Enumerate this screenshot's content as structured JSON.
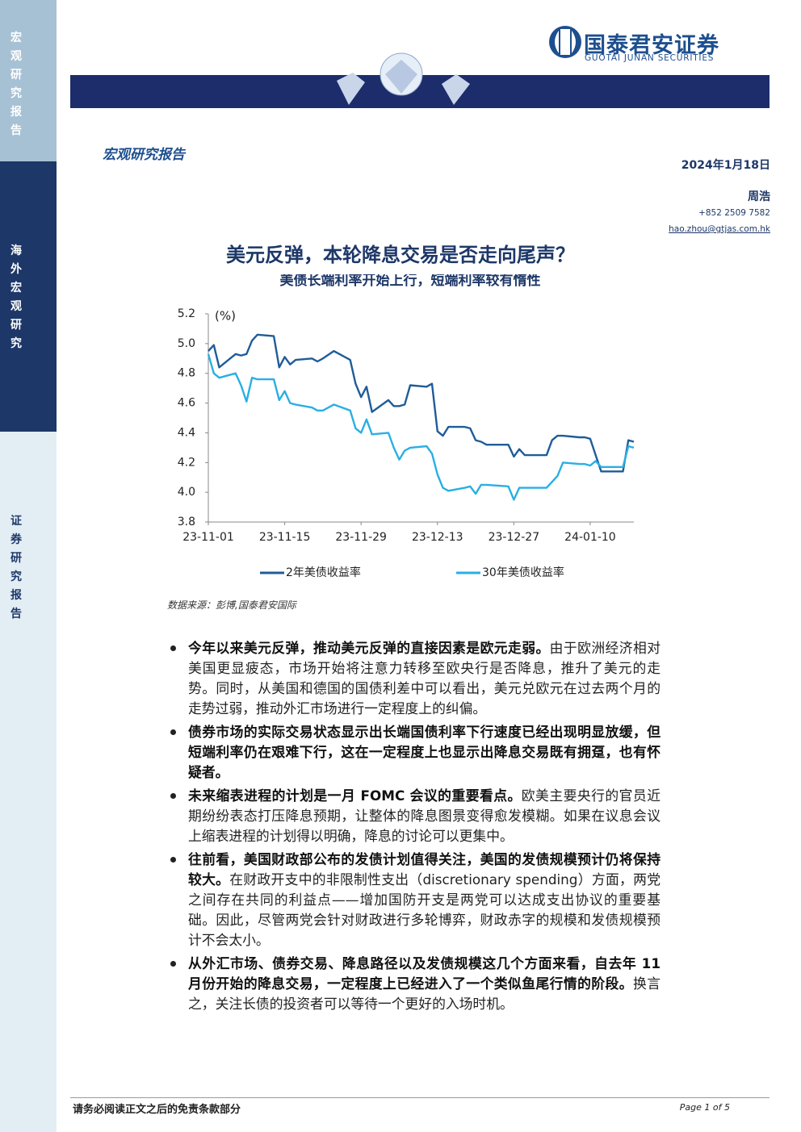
{
  "sidebar": {
    "top": "宏观研究报告",
    "middle": "海外宏观研究",
    "bottom": "证券研究报告"
  },
  "header": {
    "logo_cn": "国泰君安证券",
    "logo_en": "GUOTAI JUNAN SECURITIES"
  },
  "report_type": "宏观研究报告",
  "date": "2024年1月18日",
  "author": {
    "name": "周浩",
    "phone": "+852 2509 7582",
    "email": "hao.zhou@gtjas.com.hk"
  },
  "title": "美元反弹，本轮降息交易是否走向尾声？",
  "chart_data": {
    "type": "line",
    "title": "美债长端利率开始上行，短端利率较有惰性",
    "unit_label": "(%)",
    "x": [
      "23-11-01",
      "23-11-02",
      "23-11-03",
      "23-11-06",
      "23-11-07",
      "23-11-08",
      "23-11-09",
      "23-11-10",
      "23-11-13",
      "23-11-14",
      "23-11-15",
      "23-11-16",
      "23-11-17",
      "23-11-20",
      "23-11-21",
      "23-11-22",
      "23-11-24",
      "23-11-27",
      "23-11-28",
      "23-11-29",
      "23-11-30",
      "23-12-01",
      "23-12-04",
      "23-12-05",
      "23-12-06",
      "23-12-07",
      "23-12-08",
      "23-12-11",
      "23-12-12",
      "23-12-13",
      "23-12-14",
      "23-12-15",
      "23-12-18",
      "23-12-19",
      "23-12-20",
      "23-12-21",
      "23-12-22",
      "23-12-26",
      "23-12-27",
      "23-12-28",
      "23-12-29",
      "24-01-02",
      "24-01-03",
      "24-01-04",
      "24-01-05",
      "24-01-08",
      "24-01-09",
      "24-01-10",
      "24-01-11",
      "24-01-12",
      "24-01-16",
      "24-01-17",
      "24-01-18"
    ],
    "series": [
      {
        "name": "2年美债收益率",
        "color": "#1f5c99",
        "values": [
          4.95,
          4.99,
          4.84,
          4.93,
          4.92,
          4.93,
          5.02,
          5.06,
          5.05,
          4.84,
          4.91,
          4.86,
          4.89,
          4.9,
          4.88,
          4.9,
          4.95,
          4.89,
          4.73,
          4.64,
          4.71,
          4.54,
          4.62,
          4.58,
          4.58,
          4.59,
          4.72,
          4.71,
          4.73,
          4.41,
          4.38,
          4.44,
          4.44,
          4.43,
          4.35,
          4.34,
          4.32,
          4.32,
          4.24,
          4.29,
          4.25,
          4.25,
          4.35,
          4.38,
          4.38,
          4.37,
          4.37,
          4.36,
          4.25,
          4.14,
          4.14,
          4.35,
          4.34
        ]
      },
      {
        "name": "30年美债收益率",
        "color": "#29afe4",
        "values": [
          4.93,
          4.8,
          4.77,
          4.8,
          4.72,
          4.61,
          4.77,
          4.76,
          4.76,
          4.62,
          4.68,
          4.6,
          4.59,
          4.57,
          4.55,
          4.55,
          4.59,
          4.55,
          4.43,
          4.4,
          4.49,
          4.39,
          4.4,
          4.3,
          4.22,
          4.28,
          4.3,
          4.31,
          4.26,
          4.12,
          4.03,
          4.01,
          4.03,
          4.04,
          3.99,
          4.05,
          4.05,
          4.04,
          3.95,
          4.03,
          4.03,
          4.03,
          4.07,
          4.11,
          4.2,
          4.19,
          4.19,
          4.18,
          4.21,
          4.17,
          4.17,
          4.31,
          4.3
        ]
      }
    ],
    "xlim": [
      "23-11-01",
      "24-01-18"
    ],
    "xticks": [
      "23-11-01",
      "23-11-15",
      "23-11-29",
      "23-12-13",
      "23-12-27",
      "24-01-10"
    ],
    "ylim": [
      3.8,
      5.2
    ],
    "yticks": [
      3.8,
      {
        "value": 4,
        "label": "4.0"
      },
      4.2,
      4.4,
      4.6,
      4.8,
      {
        "value": 5,
        "label": "5.0"
      },
      5.2
    ],
    "grid": false,
    "legend": "bottom"
  },
  "source": "数据来源：彭博,国泰君安国际",
  "bullets": [
    {
      "bold": "今年以来美元反弹，推动美元反弹的直接因素是欧元走弱。",
      "text": "由于欧洲经济相对美国更显疲态，市场开始将注意力转移至欧央行是否降息，推升了美元的走势。同时，从美国和德国的国债利差中可以看出，美元兑欧元在过去两个月的走势过弱，推动外汇市场进行一定程度上的纠偏。"
    },
    {
      "bold": "债券市场的实际交易状态显示出长端国债利率下行速度已经出现明显放缓，但短端利率仍在艰难下行，这在一定程度上也显示出降息交易既有拥趸，也有怀疑者。"
    },
    {
      "bold": "未来缩表进程的计划是一月 FOMC 会议的重要看点。",
      "text": "欧美主要央行的官员近期纷纷表态打压降息预期，让整体的降息图景变得愈发模糊。如果在议息会议上缩表进程的计划得以明确，降息的讨论可以更集中。"
    },
    {
      "bold": "往前看，美国财政部公布的发债计划值得关注，美国的发债规模预计仍将保持较大。",
      "text": "在财政开支中的非限制性支出（discretionary spending）方面，两党之间存在共同的利益点——增加国防开支是两党可以达成支出协议的重要基础。因此，尽管两党会针对财政进行多轮博弈，财政赤字的规模和发债规模预计不会太小。"
    },
    {
      "bold": "从外汇市场、债券交易、降息路径以及发债规模这几个方面来看，自去年 11 月份开始的降息交易，一定程度上已经进入了一个类似鱼尾行情的阶段。",
      "text": "换言之，关注长债的投资者可以等待一个更好的入场时机。"
    }
  ],
  "footer": {
    "disclaimer": "请务必阅读正文之后的免责条款部分",
    "page": "Page 1 of 5"
  }
}
